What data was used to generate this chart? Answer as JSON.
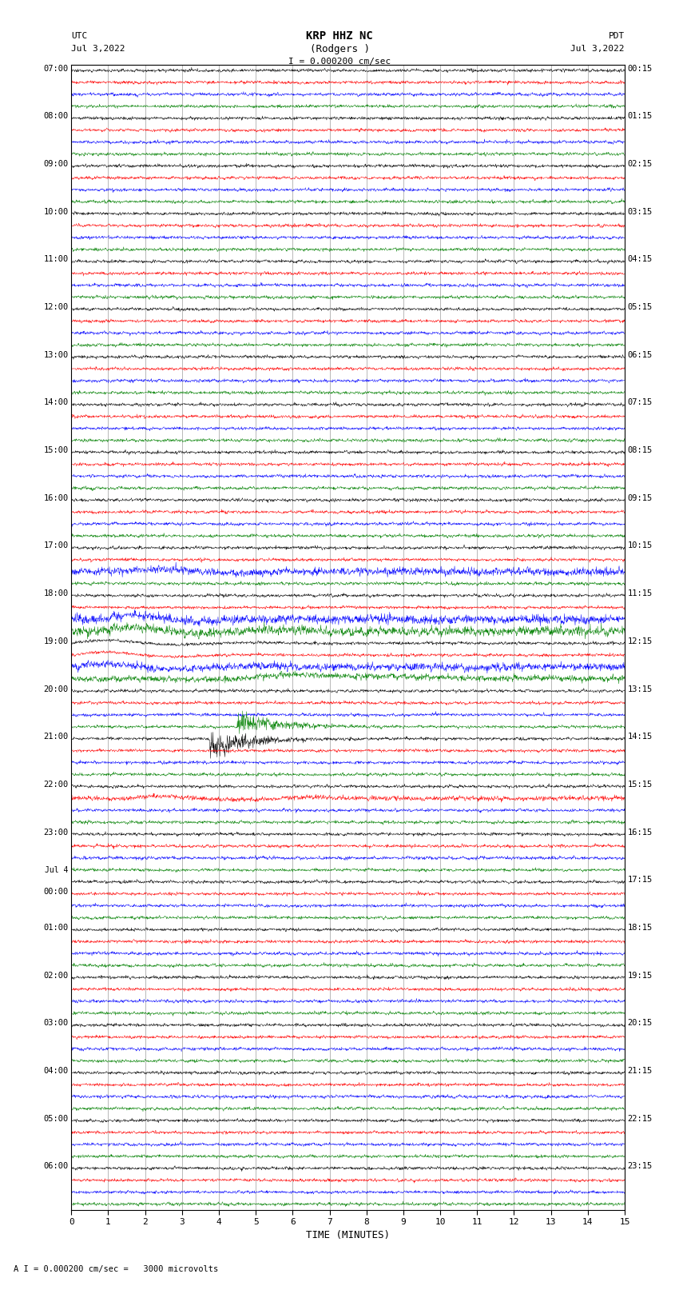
{
  "title_line1": "KRP HHZ NC",
  "title_line2": "(Rodgers )",
  "scale_label": "I = 0.000200 cm/sec",
  "bottom_label": "A I = 0.000200 cm/sec =   3000 microvolts",
  "utc_label_line1": "UTC",
  "utc_label_line2": "Jul 3,2022",
  "pdt_label_line1": "PDT",
  "pdt_label_line2": "Jul 3,2022",
  "xlabel": "TIME (MINUTES)",
  "background_color": "#ffffff",
  "trace_colors": [
    "black",
    "red",
    "blue",
    "green"
  ],
  "grid_color": "#999999",
  "num_rows": 96,
  "left_labels": [
    "07:00",
    "",
    "",
    "",
    "08:00",
    "",
    "",
    "",
    "09:00",
    "",
    "",
    "",
    "10:00",
    "",
    "",
    "",
    "11:00",
    "",
    "",
    "",
    "12:00",
    "",
    "",
    "",
    "13:00",
    "",
    "",
    "",
    "14:00",
    "",
    "",
    "",
    "15:00",
    "",
    "",
    "",
    "16:00",
    "",
    "",
    "",
    "17:00",
    "",
    "",
    "",
    "18:00",
    "",
    "",
    "",
    "19:00",
    "",
    "",
    "",
    "20:00",
    "",
    "",
    "",
    "21:00",
    "",
    "",
    "",
    "22:00",
    "",
    "",
    "",
    "23:00",
    "",
    "",
    "",
    "Jul 4",
    "00:00",
    "",
    "",
    "01:00",
    "",
    "",
    "",
    "02:00",
    "",
    "",
    "",
    "03:00",
    "",
    "",
    "",
    "04:00",
    "",
    "",
    "",
    "05:00",
    "",
    "",
    "",
    "06:00",
    "",
    "",
    ""
  ],
  "right_labels": [
    "00:15",
    "",
    "",
    "",
    "01:15",
    "",
    "",
    "",
    "02:15",
    "",
    "",
    "",
    "03:15",
    "",
    "",
    "",
    "04:15",
    "",
    "",
    "",
    "05:15",
    "",
    "",
    "",
    "06:15",
    "",
    "",
    "",
    "07:15",
    "",
    "",
    "",
    "08:15",
    "",
    "",
    "",
    "09:15",
    "",
    "",
    "",
    "10:15",
    "",
    "",
    "",
    "11:15",
    "",
    "",
    "",
    "12:15",
    "",
    "",
    "",
    "13:15",
    "",
    "",
    "",
    "14:15",
    "",
    "",
    "",
    "15:15",
    "",
    "",
    "",
    "16:15",
    "",
    "",
    "",
    "17:15",
    "",
    "",
    "",
    "18:15",
    "",
    "",
    "",
    "19:15",
    "",
    "",
    "",
    "20:15",
    "",
    "",
    "",
    "21:15",
    "",
    "",
    "",
    "22:15",
    "",
    "",
    "",
    "23:15",
    "",
    "",
    ""
  ],
  "fig_width": 8.5,
  "fig_height": 16.13,
  "dpi": 100,
  "seed": 12345
}
